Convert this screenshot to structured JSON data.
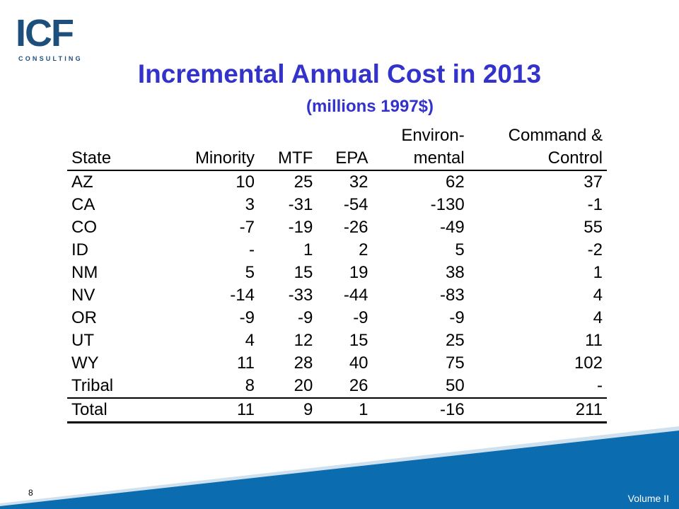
{
  "logo": {
    "main": "ICF",
    "sub": "CONSULTING"
  },
  "title": "Incremental Annual Cost in 2013",
  "subtitle": "(millions 1997$)",
  "table": {
    "headers_top": [
      "",
      "",
      "",
      "",
      "Environ-",
      "Command &"
    ],
    "headers": [
      "State",
      "Minority",
      "MTF",
      "EPA",
      "mental",
      "Control"
    ],
    "rows": [
      [
        "AZ",
        "10",
        "25",
        "32",
        "62",
        "37"
      ],
      [
        "CA",
        "3",
        "-31",
        "-54",
        "-130",
        "-1"
      ],
      [
        "CO",
        "-7",
        "-19",
        "-26",
        "-49",
        "55"
      ],
      [
        "ID",
        "-",
        "1",
        "2",
        "5",
        "-2"
      ],
      [
        "NM",
        "5",
        "15",
        "19",
        "38",
        "1"
      ],
      [
        "NV",
        "-14",
        "-33",
        "-44",
        "-83",
        "4"
      ],
      [
        "OR",
        "-9",
        "-9",
        "-9",
        "-9",
        "4"
      ],
      [
        "UT",
        "4",
        "12",
        "15",
        "25",
        "11"
      ],
      [
        "WY",
        "11",
        "28",
        "40",
        "75",
        "102"
      ],
      [
        "Tribal",
        "8",
        "20",
        "26",
        "50",
        "-"
      ]
    ],
    "total": [
      "Total",
      "11",
      "9",
      "1",
      "-16",
      "211"
    ]
  },
  "footer": {
    "page_number": "8",
    "label": "Volume II"
  },
  "colors": {
    "title": "#3333cc",
    "logo": "#1d4f7c",
    "band": "#0b6cb0"
  }
}
